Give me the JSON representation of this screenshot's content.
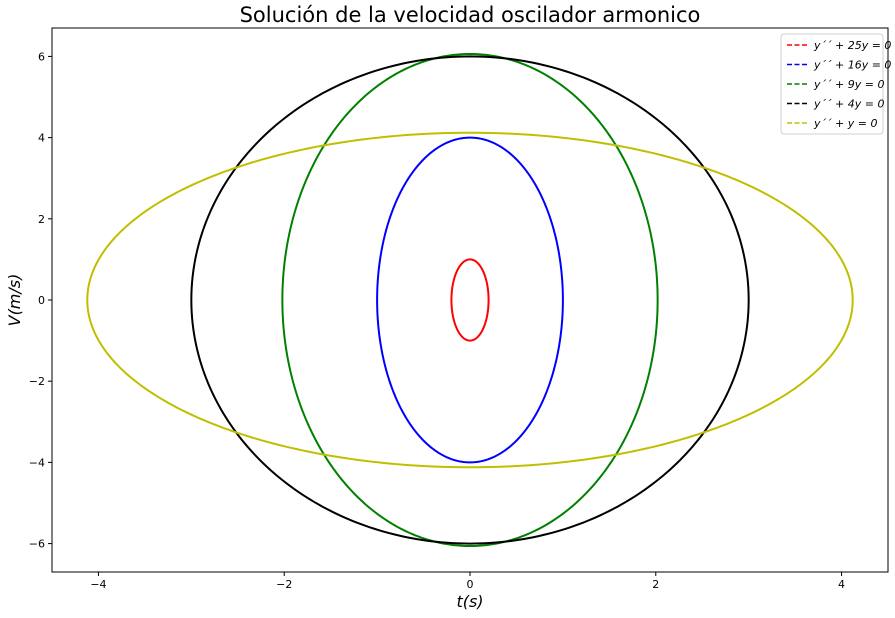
{
  "chart_data": {
    "type": "line",
    "title": "Solución de la velocidad oscilador armonico",
    "xlabel": "t(s)",
    "ylabel": "V(m/s)",
    "xlim": [
      -4.5,
      4.5
    ],
    "ylim": [
      -6.7,
      6.7
    ],
    "xticks": [
      -4,
      -2,
      0,
      2,
      4
    ],
    "yticks": [
      -6,
      -4,
      -2,
      0,
      2,
      4,
      6
    ],
    "xtick_labels": [
      "−4",
      "−2",
      "0",
      "2",
      "4"
    ],
    "ytick_labels": [
      "−6",
      "−4",
      "−2",
      "0",
      "2",
      "4",
      "6"
    ],
    "grid": false,
    "legend_position": "top-right",
    "series": [
      {
        "name": "y´´ + 25y = 0",
        "color": "#ff0000",
        "style": "ellipse",
        "x_amplitude": 0.2,
        "y_amplitude": 1.0
      },
      {
        "name": "y´´ + 16y = 0",
        "color": "#0000ff",
        "style": "ellipse",
        "x_amplitude": 1.0,
        "y_amplitude": 4.0
      },
      {
        "name": "y´´ + 9y = 0",
        "color": "#008000",
        "style": "ellipse",
        "x_amplitude": 2.02,
        "y_amplitude": 6.06
      },
      {
        "name": "y´´ + 4y = 0",
        "color": "#000000",
        "style": "ellipse",
        "x_amplitude": 3.0,
        "y_amplitude": 6.0
      },
      {
        "name": "y´´ + y = 0",
        "color": "#bfbf00",
        "style": "ellipse",
        "x_amplitude": 4.12,
        "y_amplitude": 4.12
      }
    ]
  }
}
